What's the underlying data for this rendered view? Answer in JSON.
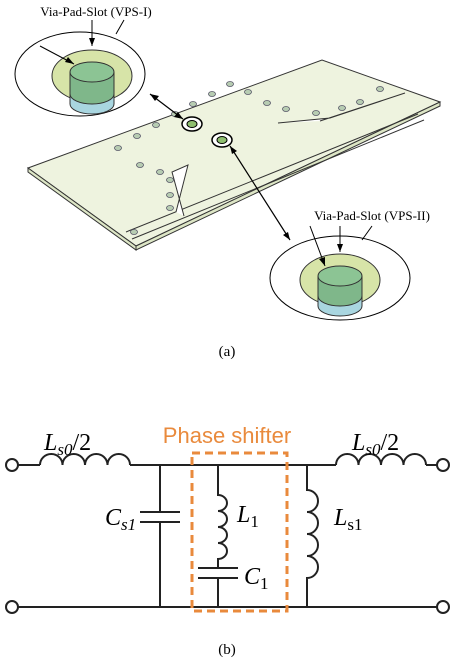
{
  "figure_a": {
    "callout_1": "Via-Pad-Slot (VPS-I)",
    "callout_2": "Via-Pad-Slot (VPS-II)",
    "caption": "(a)"
  },
  "figure_b": {
    "block_label": "Phase shifter",
    "left_series_inductor": {
      "symbol": "L",
      "subscript": "s0",
      "suffix": "/2"
    },
    "right_series_inductor": {
      "symbol": "L",
      "subscript": "s0",
      "suffix": "/2"
    },
    "shunt_capacitor": {
      "symbol": "C",
      "subscript": "s1"
    },
    "resonator_inductor": {
      "symbol": "L",
      "subscript": "1"
    },
    "resonator_capacitor": {
      "symbol": "C",
      "subscript": "1"
    },
    "shunt_inductor": {
      "symbol": "L",
      "subscript": "s1"
    },
    "caption": "(b)"
  }
}
